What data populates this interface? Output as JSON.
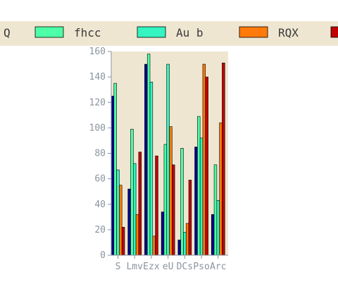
{
  "chart_data": {
    "type": "bar",
    "title": "",
    "xlabel": "",
    "ylabel": "",
    "ylim": [
      0,
      160
    ],
    "yticks": [
      0,
      20,
      40,
      60,
      80,
      100,
      120,
      140,
      160
    ],
    "grid": false,
    "legend_position": "top",
    "plot_background": "#efe6d2",
    "categories": [
      "S",
      "Lmv",
      "Ezx",
      "eU",
      "DCs",
      "Pso",
      "Arc"
    ],
    "series": [
      {
        "name": "Q",
        "color": "#00008b",
        "values": [
          125,
          52,
          150,
          34,
          12,
          85,
          32
        ]
      },
      {
        "name": "fhcc",
        "color": "#4dffa6",
        "values": [
          135,
          99,
          158,
          87,
          84,
          109,
          71
        ]
      },
      {
        "name": "Au b",
        "color": "#35f5c0",
        "values": [
          67,
          72,
          136,
          150,
          18,
          92,
          43
        ]
      },
      {
        "name": "RQX",
        "color": "#ff7a0a",
        "values": [
          55,
          32,
          15,
          101,
          25,
          150,
          104
        ]
      },
      {
        "name": "",
        "color": "#c00000",
        "values": [
          22,
          81,
          78,
          71,
          59,
          140,
          151
        ]
      }
    ]
  }
}
